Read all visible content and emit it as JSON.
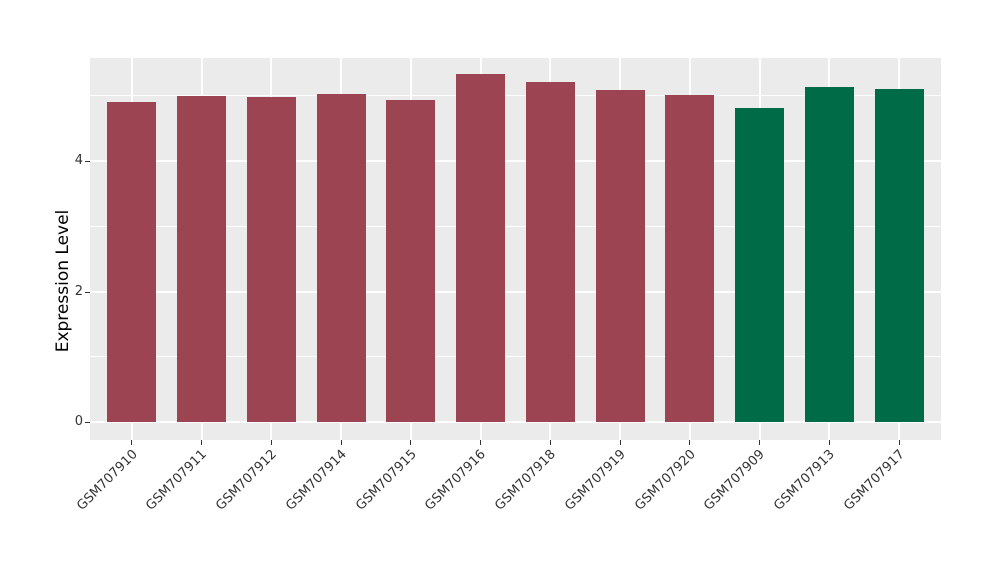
{
  "figure": {
    "background": "#ffffff",
    "panel_background": "#ebebeb",
    "grid_color": "#ffffff",
    "axis_text_color": "#333333",
    "axis_title_color": "#000000",
    "tick_mark_color": "#333333"
  },
  "chart_data": {
    "type": "bar",
    "title": "",
    "xlabel": "",
    "ylabel": "Expression Level",
    "categories": [
      "GSM707910",
      "GSM707911",
      "GSM707912",
      "GSM707914",
      "GSM707915",
      "GSM707916",
      "GSM707918",
      "GSM707919",
      "GSM707920",
      "GSM707909",
      "GSM707913",
      "GSM707917"
    ],
    "values": [
      4.9,
      4.99,
      4.98,
      5.02,
      4.93,
      5.32,
      5.21,
      5.08,
      5.0,
      4.8,
      5.12,
      5.1
    ],
    "bar_colors": [
      "#9d4452",
      "#9d4452",
      "#9d4452",
      "#9d4452",
      "#9d4452",
      "#9d4452",
      "#9d4452",
      "#9d4452",
      "#9d4452",
      "#006b47",
      "#006b47",
      "#006b47"
    ],
    "color_groups": [
      {
        "color": "#9d4452",
        "samples": [
          "GSM707910",
          "GSM707911",
          "GSM707912",
          "GSM707914",
          "GSM707915",
          "GSM707916",
          "GSM707918",
          "GSM707919",
          "GSM707920"
        ]
      },
      {
        "color": "#006b47",
        "samples": [
          "GSM707909",
          "GSM707913",
          "GSM707917"
        ]
      }
    ],
    "ylim": [
      -0.27,
      5.57
    ],
    "yticks": [
      0,
      2,
      4
    ],
    "ytick_labels": [
      "0",
      "2",
      "4"
    ],
    "minor_yticks": [
      1,
      3,
      5
    ],
    "bar_width_fraction": 0.7,
    "x_expand": 0.6,
    "x_tick_rotation_deg": 45,
    "grid": true,
    "legend": "none"
  }
}
